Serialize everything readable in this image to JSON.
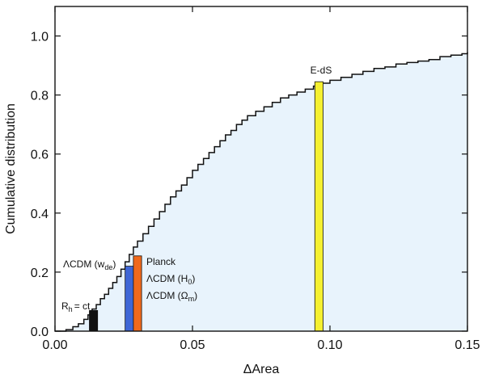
{
  "chart_data": {
    "type": "area",
    "xlabel": "ΔArea",
    "ylabel": "Cumulative distribution",
    "xlim": [
      0.0,
      0.15
    ],
    "ylim": [
      0.0,
      1.1
    ],
    "x_ticks": [
      0.0,
      0.05,
      0.1,
      0.15
    ],
    "x_tick_labels": [
      "0.00",
      "0.05",
      "0.10",
      "0.15"
    ],
    "y_ticks": [
      0.0,
      0.2,
      0.4,
      0.6,
      0.8,
      1.0
    ],
    "y_tick_labels": [
      "0.0",
      "0.2",
      "0.4",
      "0.6",
      "0.8",
      "1.0"
    ],
    "grid": false,
    "fill_color": "#e8f3fc",
    "line_color": "#111111",
    "step_curve": {
      "x": [
        0.0,
        0.004,
        0.0065,
        0.0085,
        0.0105,
        0.012,
        0.0135,
        0.015,
        0.0165,
        0.018,
        0.0195,
        0.021,
        0.0225,
        0.024,
        0.0255,
        0.027,
        0.0285,
        0.03,
        0.032,
        0.034,
        0.036,
        0.038,
        0.04,
        0.042,
        0.044,
        0.046,
        0.048,
        0.05,
        0.052,
        0.054,
        0.056,
        0.058,
        0.06,
        0.062,
        0.064,
        0.066,
        0.068,
        0.07,
        0.073,
        0.076,
        0.079,
        0.082,
        0.085,
        0.088,
        0.091,
        0.094,
        0.097,
        0.1,
        0.104,
        0.108,
        0.112,
        0.116,
        0.12,
        0.124,
        0.128,
        0.132,
        0.136,
        0.14,
        0.144,
        0.148,
        0.15
      ],
      "y": [
        0.0,
        0.005,
        0.015,
        0.025,
        0.04,
        0.055,
        0.075,
        0.09,
        0.11,
        0.125,
        0.145,
        0.165,
        0.185,
        0.21,
        0.235,
        0.26,
        0.285,
        0.305,
        0.33,
        0.355,
        0.38,
        0.405,
        0.43,
        0.455,
        0.475,
        0.495,
        0.52,
        0.545,
        0.565,
        0.585,
        0.605,
        0.625,
        0.645,
        0.665,
        0.68,
        0.7,
        0.715,
        0.73,
        0.745,
        0.76,
        0.775,
        0.79,
        0.8,
        0.81,
        0.82,
        0.83,
        0.84,
        0.85,
        0.86,
        0.87,
        0.88,
        0.89,
        0.895,
        0.905,
        0.91,
        0.915,
        0.92,
        0.93,
        0.935,
        0.94,
        0.945
      ]
    },
    "bars": [
      {
        "name": "Rh=ct",
        "x0": 0.0125,
        "x1": 0.0155,
        "y": 0.07,
        "color": "#111111"
      },
      {
        "name": "ΛCDM (wde)",
        "x0": 0.0255,
        "x1": 0.0285,
        "y": 0.22,
        "color": "#3f67d6"
      },
      {
        "name": "Planck / ΛCDM (H0) / ΛCDM (Ωm)",
        "x0": 0.0285,
        "x1": 0.0315,
        "y": 0.255,
        "color": "#f0691c"
      },
      {
        "name": "E-dS",
        "x0": 0.0945,
        "x1": 0.0975,
        "y": 0.845,
        "color": "#f5f030"
      }
    ],
    "annotations": {
      "rh": {
        "main": "R",
        "sub": "h",
        "rest": "= ct"
      },
      "wde": {
        "main": "ΛCDM (w",
        "sub": "de",
        "rest": ")"
      },
      "planck": "Planck",
      "h0": {
        "main": "ΛCDM (H",
        "sub": "0",
        "rest": ")"
      },
      "om": {
        "main": "ΛCDM (Ω",
        "sub": "m",
        "rest": ")"
      },
      "eds": "E-dS"
    }
  }
}
